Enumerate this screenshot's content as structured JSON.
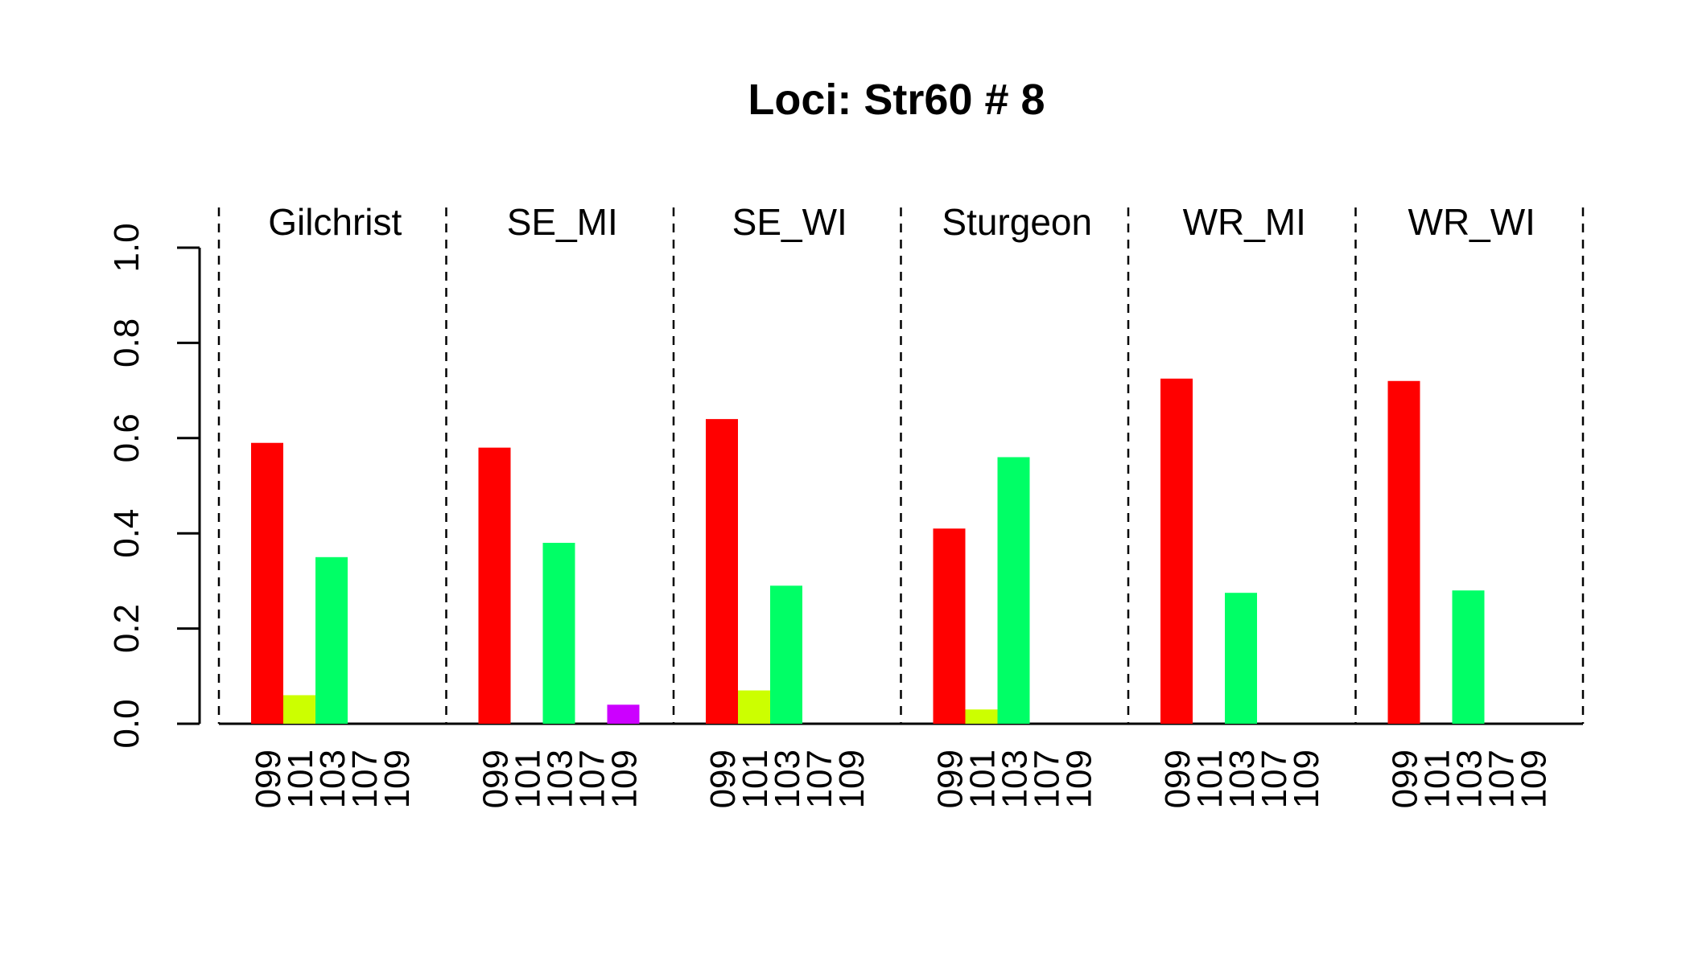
{
  "chart_data": {
    "type": "bar",
    "title": "Loci: Str60 # 8",
    "xlabel": "",
    "ylabel": "",
    "ylim": [
      0,
      1
    ],
    "yticks": [
      "0.0",
      "0.2",
      "0.4",
      "0.6",
      "0.8",
      "1.0"
    ],
    "grid": false,
    "categories": [
      "099",
      "101",
      "103",
      "107",
      "109"
    ],
    "colors": [
      "#FF0000",
      "#CCFF00",
      "#00FF66",
      "#0066FF",
      "#CC00FF"
    ],
    "panels": [
      {
        "name": "Gilchrist",
        "values": [
          0.59,
          0.06,
          0.35,
          0,
          0
        ]
      },
      {
        "name": "SE_MI",
        "values": [
          0.58,
          0,
          0.38,
          0,
          0.04
        ]
      },
      {
        "name": "SE_WI",
        "values": [
          0.64,
          0.07,
          0.29,
          0,
          0
        ]
      },
      {
        "name": "Sturgeon",
        "values": [
          0.41,
          0.03,
          0.56,
          0,
          0
        ]
      },
      {
        "name": "WR_MI",
        "values": [
          0.725,
          0,
          0.275,
          0,
          0
        ]
      },
      {
        "name": "WR_WI",
        "values": [
          0.72,
          0,
          0.28,
          0,
          0
        ]
      }
    ]
  }
}
